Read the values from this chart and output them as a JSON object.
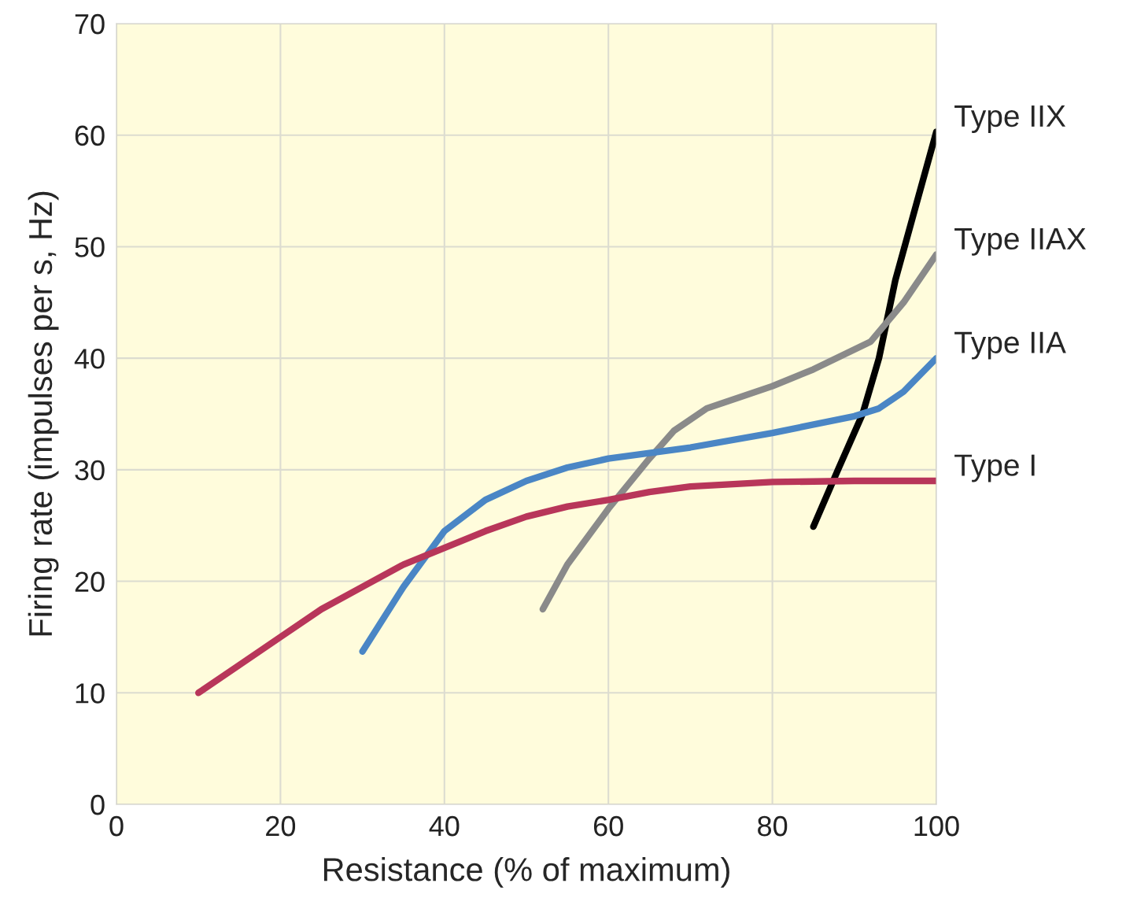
{
  "chart_data": {
    "type": "line",
    "xlabel": "Resistance (% of maximum)",
    "ylabel": "Firing rate (impulses per s, Hz)",
    "xlim": [
      0,
      100
    ],
    "xticks": [
      0,
      20,
      40,
      60,
      80,
      100
    ],
    "ylim": [
      0,
      70
    ],
    "yticks": [
      0,
      10,
      20,
      30,
      40,
      50,
      60,
      70
    ],
    "grid": true,
    "legend": false,
    "series": [
      {
        "name": "Type IIX",
        "color": "#000000",
        "x": [
          85,
          88,
          91,
          93,
          95,
          98,
          100
        ],
        "values": [
          24.9,
          30,
          35,
          40,
          47,
          55,
          60.3
        ]
      },
      {
        "name": "Type IIAX",
        "color": "#8a8a8a",
        "x": [
          52,
          55,
          60,
          65,
          68,
          72,
          80,
          85,
          92,
          96,
          100
        ],
        "values": [
          17.5,
          21.5,
          26.5,
          31,
          33.5,
          35.5,
          37.5,
          39,
          41.5,
          45,
          49.3
        ]
      },
      {
        "name": "Type IIA",
        "color": "#4a86c5",
        "x": [
          30,
          35,
          40,
          45,
          50,
          55,
          60,
          65,
          70,
          80,
          90,
          93,
          96,
          100
        ],
        "values": [
          13.7,
          19.5,
          24.5,
          27.3,
          29,
          30.2,
          31,
          31.5,
          32,
          33.3,
          34.8,
          35.5,
          37,
          40
        ]
      },
      {
        "name": "Type I",
        "color": "#b8365a",
        "x": [
          10,
          15,
          20,
          25,
          30,
          35,
          40,
          45,
          50,
          55,
          60,
          65,
          70,
          80,
          90,
          100
        ],
        "values": [
          10,
          12.5,
          15,
          17.5,
          19.5,
          21.5,
          23,
          24.5,
          25.8,
          26.7,
          27.3,
          28,
          28.5,
          28.9,
          29,
          29
        ]
      }
    ]
  }
}
